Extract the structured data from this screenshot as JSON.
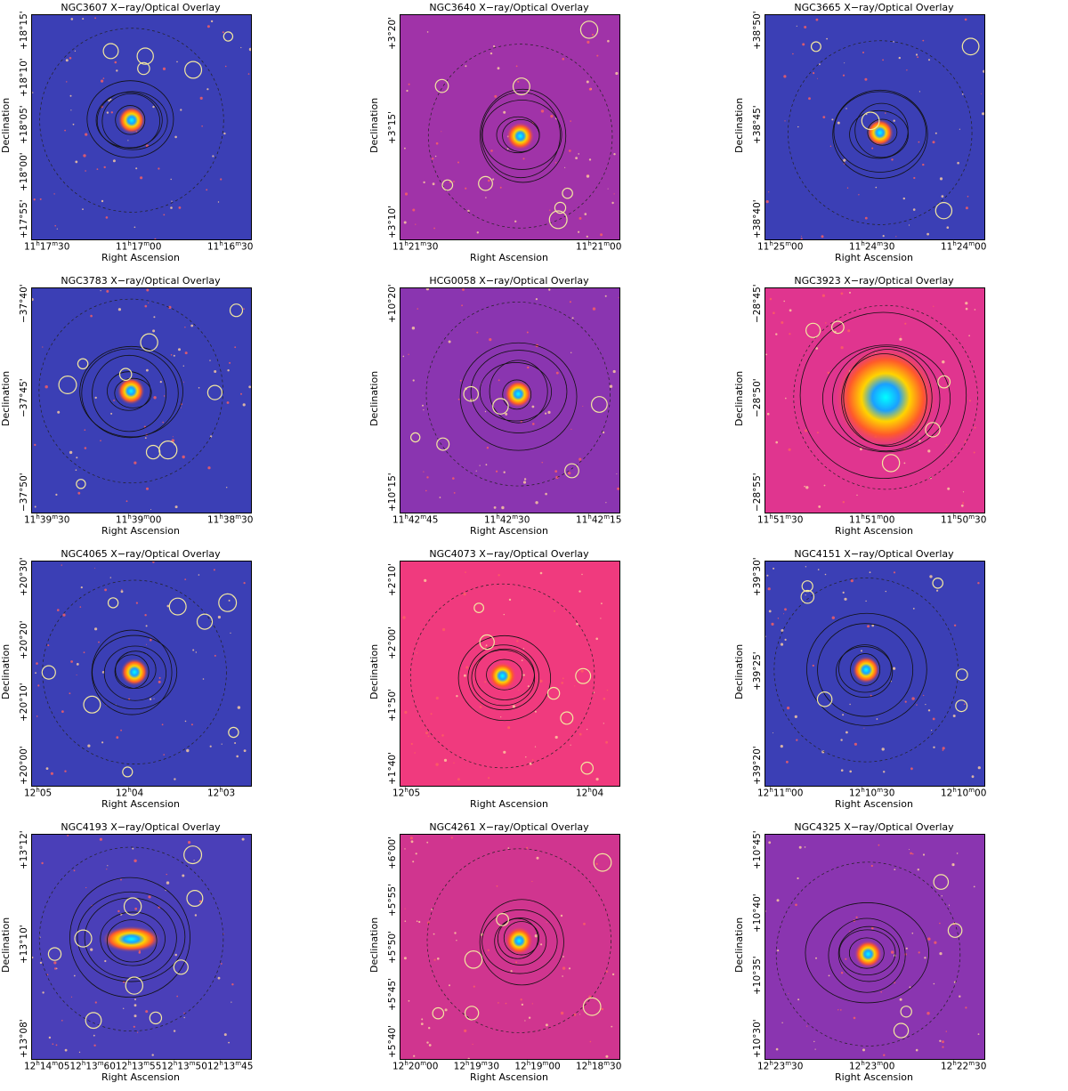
{
  "panels": [
    {
      "title": "NGC3607 X−ray/Optical Overlay",
      "bg": "#3b3fb5",
      "xlabel": "Right Ascension",
      "ylabel": "Declination",
      "xticks": [
        "11h17m30",
        "11h17m00",
        "11h16m30"
      ],
      "yticks": [
        "+18°15'",
        "+18°10'",
        "+18°05'",
        "+18°00'",
        "+17°55'"
      ]
    },
    {
      "title": "NGC3640 X−ray/Optical Overlay",
      "bg": "#a033a8",
      "xlabel": "Right Ascension",
      "ylabel": "Declination",
      "xticks": [
        "11h21m30",
        "11h21m00"
      ],
      "yticks": [
        "+3°20'",
        "+3°15'",
        "+3°10'"
      ]
    },
    {
      "title": "NGC3665 X−ray/Optical Overlay",
      "bg": "#3b3fb5",
      "xlabel": "Right Ascension",
      "ylabel": "Declination",
      "xticks": [
        "11h25m00",
        "11h24m30",
        "11h24m00"
      ],
      "yticks": [
        "+38°50'",
        "+38°45'",
        "+38°40'"
      ]
    },
    {
      "title": "NGC3783 X−ray/Optical Overlay",
      "bg": "#3b3fb5",
      "xlabel": "Right Ascension",
      "ylabel": "Declination",
      "xticks": [
        "11h39m30",
        "11h39m00",
        "11h38m30"
      ],
      "yticks": [
        "−37°40'",
        "−37°45'",
        "−37°50'"
      ]
    },
    {
      "title": "HCG0058 X−ray/Optical Overlay",
      "bg": "#8a35b0",
      "xlabel": "Right Ascension",
      "ylabel": "Declination",
      "xticks": [
        "11h42m45",
        "11h42m30",
        "11h42m15"
      ],
      "yticks": [
        "+10°20'",
        "+10°15'"
      ]
    },
    {
      "title": "NGC3923 X−ray/Optical Overlay",
      "bg": "#e0358f",
      "xlabel": "Right Ascension",
      "ylabel": "Declination",
      "xticks": [
        "11h51m30",
        "11h51m00",
        "11h50m30"
      ],
      "yticks": [
        "−28°45'",
        "−28°50'",
        "−28°55'"
      ]
    },
    {
      "title": "NGC4065 X−ray/Optical Overlay",
      "bg": "#3b3fb5",
      "xlabel": "Right Ascension",
      "ylabel": "Declination",
      "xticks": [
        "12h05",
        "12h04",
        "12h03"
      ],
      "yticks": [
        "+20°30'",
        "+20°20'",
        "+20°10'",
        "+20°00'"
      ]
    },
    {
      "title": "NGC4073 X−ray/Optical Overlay",
      "bg": "#f03a7e",
      "xlabel": "Right Ascension",
      "ylabel": "Declination",
      "xticks": [
        "12h05",
        "12h04"
      ],
      "yticks": [
        "+2°10'",
        "+2°00'",
        "+1°50'",
        "+1°40'"
      ]
    },
    {
      "title": "NGC4151 X−ray/Optical Overlay",
      "bg": "#3b3fb5",
      "xlabel": "Right Ascension",
      "ylabel": "Declination",
      "xticks": [
        "12h11m00",
        "12h10m30",
        "12h10m00"
      ],
      "yticks": [
        "+39°30'",
        "+39°25'",
        "+39°20'"
      ]
    },
    {
      "title": "NGC4193 X−ray/Optical Overlay",
      "bg": "#4a3fb8",
      "xlabel": "Right Ascension",
      "ylabel": "Declination",
      "xticks": [
        "12h14m05",
        "12h13m60",
        "12h13m55",
        "12h13m50",
        "12h13m45"
      ],
      "yticks": [
        "+13°12'",
        "+13°10'",
        "+13°08'"
      ]
    },
    {
      "title": "NGC4261 X−ray/Optical Overlay",
      "bg": "#d0358f",
      "xlabel": "Right Ascension",
      "ylabel": "Declination",
      "xticks": [
        "12h20m00",
        "12h19m30",
        "12h19m00",
        "12h18m30"
      ],
      "yticks": [
        "+6°00'",
        "+5°55'",
        "+5°50'",
        "+5°45'",
        "+5°40'"
      ]
    },
    {
      "title": "NGC4325 X−ray/Optical Overlay",
      "bg": "#8a35b0",
      "xlabel": "Right Ascension",
      "ylabel": "Declination",
      "xticks": [
        "12h23m30",
        "12h23m00",
        "12h22m30"
      ],
      "yticks": [
        "+10°45'",
        "+10°40'",
        "+10°35'",
        "+10°30'"
      ]
    }
  ]
}
